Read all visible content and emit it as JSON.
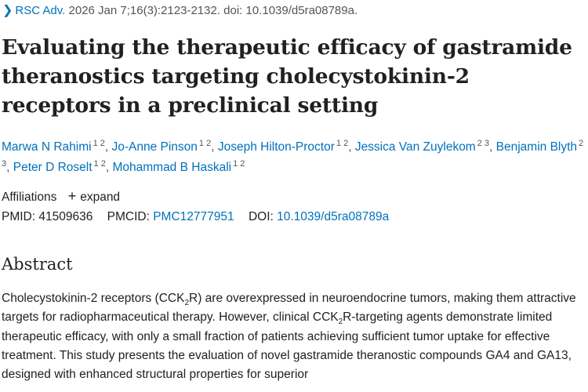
{
  "citation": {
    "journal": "RSC Adv.",
    "details": " 2026 Jan 7;16(3):2123-2132. doi: 10.1039/d5ra08789a."
  },
  "title": "Evaluating the therapeutic efficacy of gastramide theranostics targeting cholecystokinin-2 receptors in a preclinical setting",
  "authors": [
    {
      "name": "Marwa N Rahimi",
      "aff": "1 2"
    },
    {
      "name": "Jo-Anne Pinson",
      "aff": "1 2"
    },
    {
      "name": "Joseph Hilton-Proctor",
      "aff": "1 2"
    },
    {
      "name": "Jessica Van Zuylekom",
      "aff": "2 3"
    },
    {
      "name": "Benjamin Blyth",
      "aff": "2 3"
    },
    {
      "name": "Peter D Roselt",
      "aff": "1 2"
    },
    {
      "name": "Mohammad B Haskali",
      "aff": "1 2"
    }
  ],
  "affiliations": {
    "label": "Affiliations",
    "expand": "expand"
  },
  "ids": {
    "pmid_label": "PMID:",
    "pmid": "41509636",
    "pmcid_label": "PMCID:",
    "pmcid": "PMC12777951",
    "doi_label": "DOI:",
    "doi": "10.1039/d5ra08789a"
  },
  "abstract": {
    "heading": "Abstract",
    "t1": "Cholecystokinin-2 receptors (CCK",
    "s1": "2",
    "t2": "R) are overexpressed in neuroendocrine tumors, making them attractive targets for radiopharmaceutical therapy. However, clinical CCK",
    "s2": "2",
    "t3": "R-targeting agents demonstrate limited therapeutic efficacy, with only a small fraction of patients achieving sufficient tumor uptake for effective treatment. This study presents the evaluation of novel gastramide theranostic compounds GA4 and GA13, designed with enhanced structural properties for superior"
  },
  "colors": {
    "link": "#0071bc",
    "text": "#212121"
  }
}
